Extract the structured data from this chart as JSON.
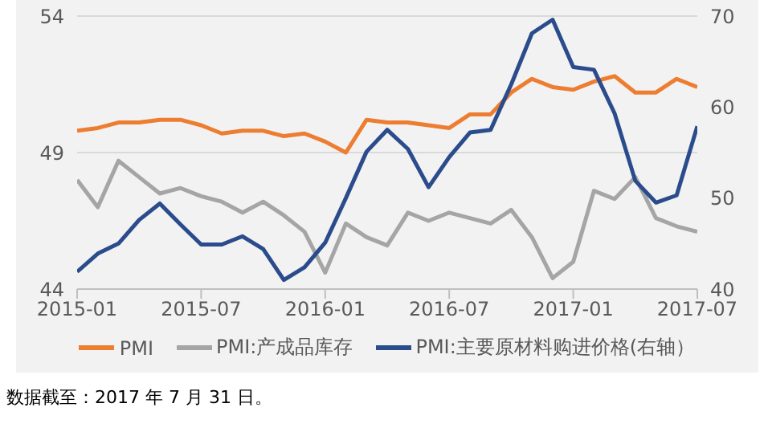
{
  "chart_data": {
    "type": "line",
    "x": [
      "2015-01",
      "2015-02",
      "2015-03",
      "2015-04",
      "2015-05",
      "2015-06",
      "2015-07",
      "2015-08",
      "2015-09",
      "2015-10",
      "2015-11",
      "2015-12",
      "2016-01",
      "2016-02",
      "2016-03",
      "2016-04",
      "2016-05",
      "2016-06",
      "2016-07",
      "2016-08",
      "2016-09",
      "2016-10",
      "2016-11",
      "2016-12",
      "2017-01",
      "2017-02",
      "2017-03",
      "2017-04",
      "2017-05",
      "2017-06",
      "2017-07"
    ],
    "series": [
      {
        "name": "PMI",
        "color": "#ed7d31",
        "values": [
          49.8,
          49.9,
          50.1,
          50.1,
          50.2,
          50.2,
          50.0,
          49.7,
          49.8,
          49.8,
          49.6,
          49.7,
          49.4,
          49.0,
          50.2,
          50.1,
          50.1,
          50.0,
          49.9,
          50.4,
          50.4,
          51.2,
          51.7,
          51.4,
          51.3,
          51.6,
          51.8,
          51.2,
          51.2,
          51.7,
          51.4
        ]
      },
      {
        "name": "PMI:产成品库存",
        "color": "#a5a5a5",
        "values": [
          48.0,
          47.0,
          48.7,
          48.1,
          47.5,
          47.7,
          47.4,
          47.2,
          46.8,
          47.2,
          46.7,
          46.1,
          44.6,
          46.4,
          45.9,
          45.6,
          46.8,
          46.5,
          46.8,
          46.6,
          46.4,
          46.9,
          45.9,
          44.4,
          45.0,
          47.6,
          47.3,
          48.1,
          46.6,
          46.3,
          46.1
        ]
      },
      {
        "name": "PMI:主要原材料购进价格(右轴）",
        "color": "#2b4c8c",
        "axis": "y2",
        "values": [
          41.9,
          43.9,
          45.0,
          47.6,
          49.4,
          47.1,
          44.9,
          44.9,
          45.8,
          44.4,
          41.0,
          42.4,
          45.1,
          50.0,
          55.1,
          57.5,
          55.4,
          51.2,
          54.5,
          57.2,
          57.5,
          62.5,
          68.1,
          69.6,
          64.4,
          64.1,
          59.3,
          51.9,
          49.5,
          50.3,
          57.9
        ]
      }
    ],
    "xlim": [
      "2015-01",
      "2017-07"
    ],
    "xticks": [
      "2015-01",
      "2015-07",
      "2016-01",
      "2016-07",
      "2017-01",
      "2017-07"
    ],
    "ylim": [
      44,
      54
    ],
    "yticks": [
      44,
      49,
      54
    ],
    "y2lim": [
      40,
      70
    ],
    "y2ticks": [
      40,
      50,
      60,
      70
    ],
    "grid": "y",
    "legend": "bottom",
    "marker": "none",
    "line_style": "solid",
    "annotations": [
      "数据截至：2017 年 7 月 31 日。"
    ]
  }
}
